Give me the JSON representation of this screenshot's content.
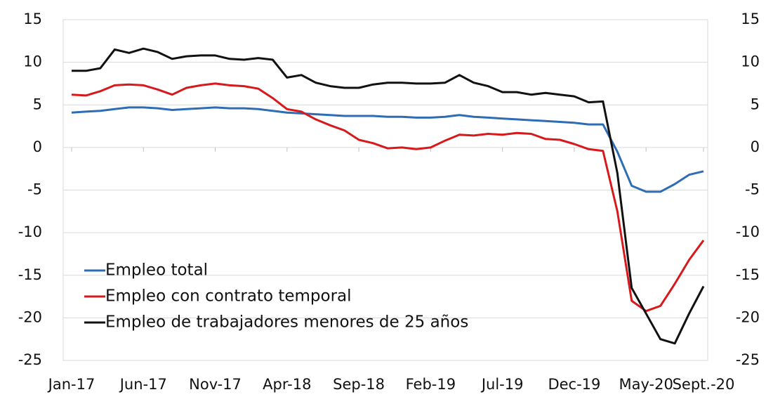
{
  "chart_data": {
    "type": "line",
    "categories": [
      "Jan-17",
      null,
      null,
      null,
      null,
      "Jun-17",
      null,
      null,
      null,
      null,
      "Nov-17",
      null,
      null,
      null,
      null,
      "Apr-18",
      null,
      null,
      null,
      null,
      "Sep-18",
      null,
      null,
      null,
      null,
      "Feb-19",
      null,
      null,
      null,
      null,
      "Jul-19",
      null,
      null,
      null,
      null,
      "Dec-19",
      null,
      null,
      null,
      null,
      "May-20",
      null,
      null,
      null,
      "Sept.-20"
    ],
    "series": [
      {
        "name": "Empleo total",
        "color": "#2e6db4",
        "values": [
          4.1,
          4.2,
          4.3,
          4.5,
          4.7,
          4.7,
          4.6,
          4.4,
          4.5,
          4.6,
          4.7,
          4.6,
          4.6,
          4.5,
          4.3,
          4.1,
          4.0,
          3.9,
          3.8,
          3.7,
          3.7,
          3.7,
          3.6,
          3.6,
          3.5,
          3.5,
          3.6,
          3.8,
          3.6,
          3.5,
          3.4,
          3.3,
          3.2,
          3.1,
          3.0,
          2.9,
          2.7,
          2.7,
          -0.5,
          -4.5,
          -5.2,
          -5.2,
          -4.3,
          -3.2,
          -2.8
        ]
      },
      {
        "name": "Empleo con contrato temporal",
        "color": "#d7191c",
        "values": [
          6.2,
          6.1,
          6.6,
          7.3,
          7.4,
          7.3,
          6.8,
          6.2,
          7.0,
          7.3,
          7.5,
          7.3,
          7.2,
          6.9,
          5.8,
          4.5,
          4.2,
          3.3,
          2.6,
          2.0,
          0.9,
          0.5,
          -0.1,
          0.0,
          -0.2,
          0.0,
          0.8,
          1.5,
          1.4,
          1.6,
          1.5,
          1.7,
          1.6,
          1.0,
          0.9,
          0.4,
          -0.2,
          -0.4,
          -7.5,
          -18,
          -19.2,
          -18.6,
          -16,
          -13.2,
          -10.9
        ]
      },
      {
        "name": "Empleo de trabajadores menores de 25 años",
        "color": "#111111",
        "values": [
          9.0,
          9.0,
          9.3,
          11.5,
          11.1,
          11.6,
          11.2,
          10.4,
          10.7,
          10.8,
          10.8,
          10.4,
          10.3,
          10.5,
          10.3,
          8.2,
          8.5,
          7.6,
          7.2,
          7.0,
          7.0,
          7.4,
          7.6,
          7.6,
          7.5,
          7.5,
          7.6,
          8.5,
          7.6,
          7.2,
          6.5,
          6.5,
          6.2,
          6.4,
          6.2,
          6.0,
          5.3,
          5.4,
          -3,
          -16.5,
          -19.5,
          -22.5,
          -23,
          -19.5,
          -16.3
        ]
      }
    ],
    "ylim": [
      -25,
      15
    ],
    "yticks": [
      15,
      10,
      5,
      0,
      -5,
      -10,
      -15,
      -20,
      -25
    ],
    "y2lim": [
      -25,
      15
    ],
    "y2ticks": [
      15,
      10,
      5,
      0,
      -5,
      -10,
      -15,
      -20,
      -25
    ],
    "grid": true,
    "legend": "lower left"
  }
}
